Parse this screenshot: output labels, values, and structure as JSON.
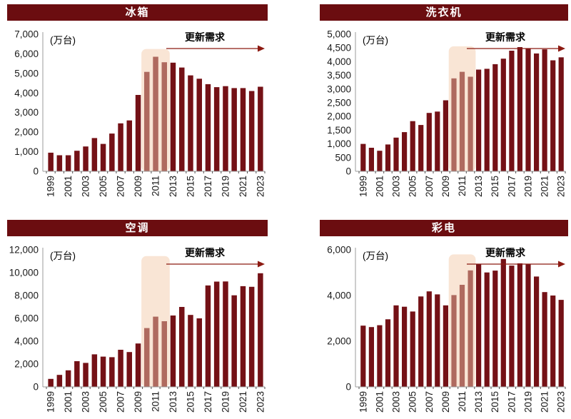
{
  "colors": {
    "bar": "#741116",
    "bar_highlight": "#AF6A5F",
    "highlight_band": "#F9E5D5",
    "title_bg": "#6B0D10",
    "title_text": "#FFFFFF",
    "arrow": "#8C1A12",
    "axis_line": "#9B9B9B",
    "tick": "#4D4D4D",
    "label_text": "#1A1A1A",
    "annotation_text": "#000000"
  },
  "chart_data": [
    {
      "type": "bar",
      "title": "冰箱",
      "unit_label": "(万台)",
      "annotation": "更新需求",
      "categories": [
        1999,
        2000,
        2001,
        2002,
        2003,
        2004,
        2005,
        2006,
        2007,
        2008,
        2009,
        2010,
        2011,
        2012,
        2013,
        2014,
        2015,
        2016,
        2017,
        2018,
        2019,
        2020,
        2021,
        2022,
        2023
      ],
      "values": [
        950,
        820,
        820,
        1050,
        1270,
        1700,
        1400,
        1930,
        2450,
        2600,
        3900,
        5080,
        5850,
        5570,
        5550,
        5300,
        4900,
        4730,
        4450,
        4300,
        4350,
        4250,
        4250,
        4100,
        4320
      ],
      "ylim": [
        0,
        7000
      ],
      "ytick_step": 1000,
      "ytick_labels": [
        "0",
        "1,000",
        "2,000",
        "3,000",
        "4,000",
        "5,000",
        "6,000",
        "7,000"
      ],
      "x_label_every": 2,
      "grid": false,
      "legend": null,
      "highlight": {
        "from_year": 2010,
        "to_year": 2012,
        "top_value": 6250
      }
    },
    {
      "type": "bar",
      "title": "洗衣机",
      "unit_label": "(万台)",
      "annotation": "更新需求",
      "categories": [
        1999,
        2000,
        2001,
        2002,
        2003,
        2004,
        2005,
        2006,
        2007,
        2008,
        2009,
        2010,
        2011,
        2012,
        2013,
        2014,
        2015,
        2016,
        2017,
        2018,
        2019,
        2020,
        2021,
        2022,
        2023
      ],
      "values": [
        1000,
        860,
        750,
        980,
        1230,
        1430,
        1830,
        1690,
        2130,
        2180,
        2590,
        3390,
        3630,
        3450,
        3710,
        3740,
        3910,
        4110,
        4400,
        4530,
        4480,
        4300,
        4450,
        4050,
        4160
      ],
      "ylim": [
        0,
        5000
      ],
      "ytick_step": 500,
      "ytick_labels": [
        "0",
        "500",
        "1,000",
        "1,500",
        "2,000",
        "2,500",
        "3,000",
        "3,500",
        "4,000",
        "4,500",
        "5,000"
      ],
      "x_label_every": 2,
      "grid": false,
      "legend": null,
      "highlight": {
        "from_year": 2010,
        "to_year": 2012,
        "top_value": 4560
      }
    },
    {
      "type": "bar",
      "title": "空调",
      "unit_label": "(万台)",
      "annotation": "更新需求",
      "categories": [
        1999,
        2000,
        2001,
        2002,
        2003,
        2004,
        2005,
        2006,
        2007,
        2008,
        2009,
        2010,
        2011,
        2012,
        2013,
        2014,
        2015,
        2016,
        2017,
        2018,
        2019,
        2020,
        2021,
        2022,
        2023
      ],
      "values": [
        700,
        1050,
        1450,
        2250,
        2100,
        2850,
        2650,
        2600,
        3250,
        3050,
        3800,
        5150,
        6150,
        5750,
        6250,
        7000,
        6300,
        6000,
        8880,
        9220,
        9230,
        8020,
        8820,
        8760,
        9950
      ],
      "ylim": [
        0,
        12000
      ],
      "ytick_step": 2000,
      "ytick_labels": [
        "0",
        "2,000",
        "4,000",
        "6,000",
        "8,000",
        "10,000",
        "12,000"
      ],
      "x_label_every": 2,
      "grid": false,
      "legend": null,
      "highlight": {
        "from_year": 2010,
        "to_year": 2012,
        "top_value": 11450
      }
    },
    {
      "type": "bar",
      "title": "彩电",
      "unit_label": "(万台)",
      "annotation": "更新需求",
      "categories": [
        1999,
        2000,
        2001,
        2002,
        2003,
        2004,
        2005,
        2006,
        2007,
        2008,
        2009,
        2010,
        2011,
        2012,
        2013,
        2014,
        2015,
        2016,
        2017,
        2018,
        2019,
        2020,
        2021,
        2022,
        2023
      ],
      "values": [
        2680,
        2620,
        2700,
        2960,
        3570,
        3510,
        3300,
        3960,
        4180,
        4050,
        3570,
        4020,
        4470,
        5100,
        5360,
        5010,
        5090,
        5600,
        5310,
        5410,
        5360,
        4830,
        4150,
        4000,
        3810
      ],
      "ylim": [
        0,
        6000
      ],
      "ytick_step": 2000,
      "ytick_labels": [
        "0",
        "2,000",
        "4,000",
        "6,000"
      ],
      "x_label_every": 2,
      "grid": false,
      "legend": null,
      "highlight": {
        "from_year": 2010,
        "to_year": 2012,
        "top_value": 5800
      }
    }
  ]
}
